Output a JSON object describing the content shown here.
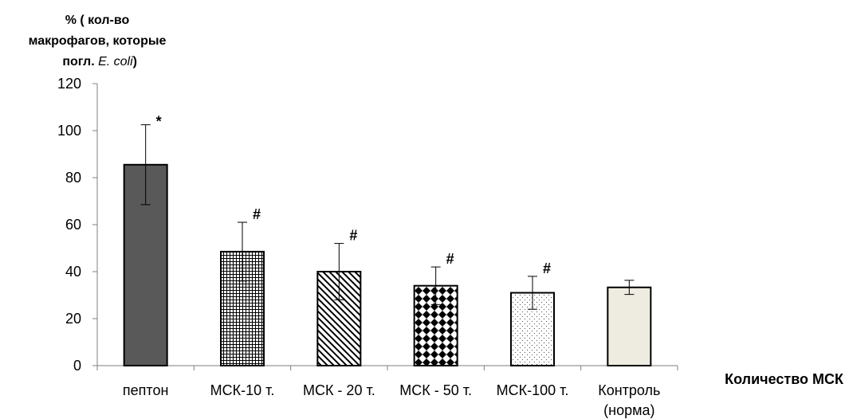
{
  "chart_data": {
    "type": "bar",
    "ylabel_lines": [
      "% ( кол-во",
      "макрофагов, которые",
      "погл. "
    ],
    "ylabel_italic": "E. coli",
    "ylabel_close": ")",
    "xlabel": "Количество МСК",
    "ylim": [
      0,
      120
    ],
    "yticks": [
      0,
      20,
      40,
      60,
      80,
      100,
      120
    ],
    "categories": [
      [
        "пептон"
      ],
      [
        "МСК-10 т."
      ],
      [
        "МСК - 20 т."
      ],
      [
        "МСК - 50 т."
      ],
      [
        "МСК-100 т."
      ],
      [
        "Контроль",
        "(норма)"
      ]
    ],
    "values": [
      85.5,
      48.5,
      40,
      34,
      31,
      33.3
    ],
    "errors": [
      17,
      12.5,
      12,
      8,
      7,
      3
    ],
    "annotations": [
      "*",
      "#",
      "#",
      "#",
      "#",
      ""
    ],
    "fills": [
      "solid-dark",
      "grid",
      "diagonal",
      "checker",
      "dots",
      "solid-beige"
    ],
    "colors": {
      "dark_bar": "#595959",
      "beige_bar": "#eeece1",
      "outline": "#000000",
      "axis": "#7f7f7f"
    }
  }
}
